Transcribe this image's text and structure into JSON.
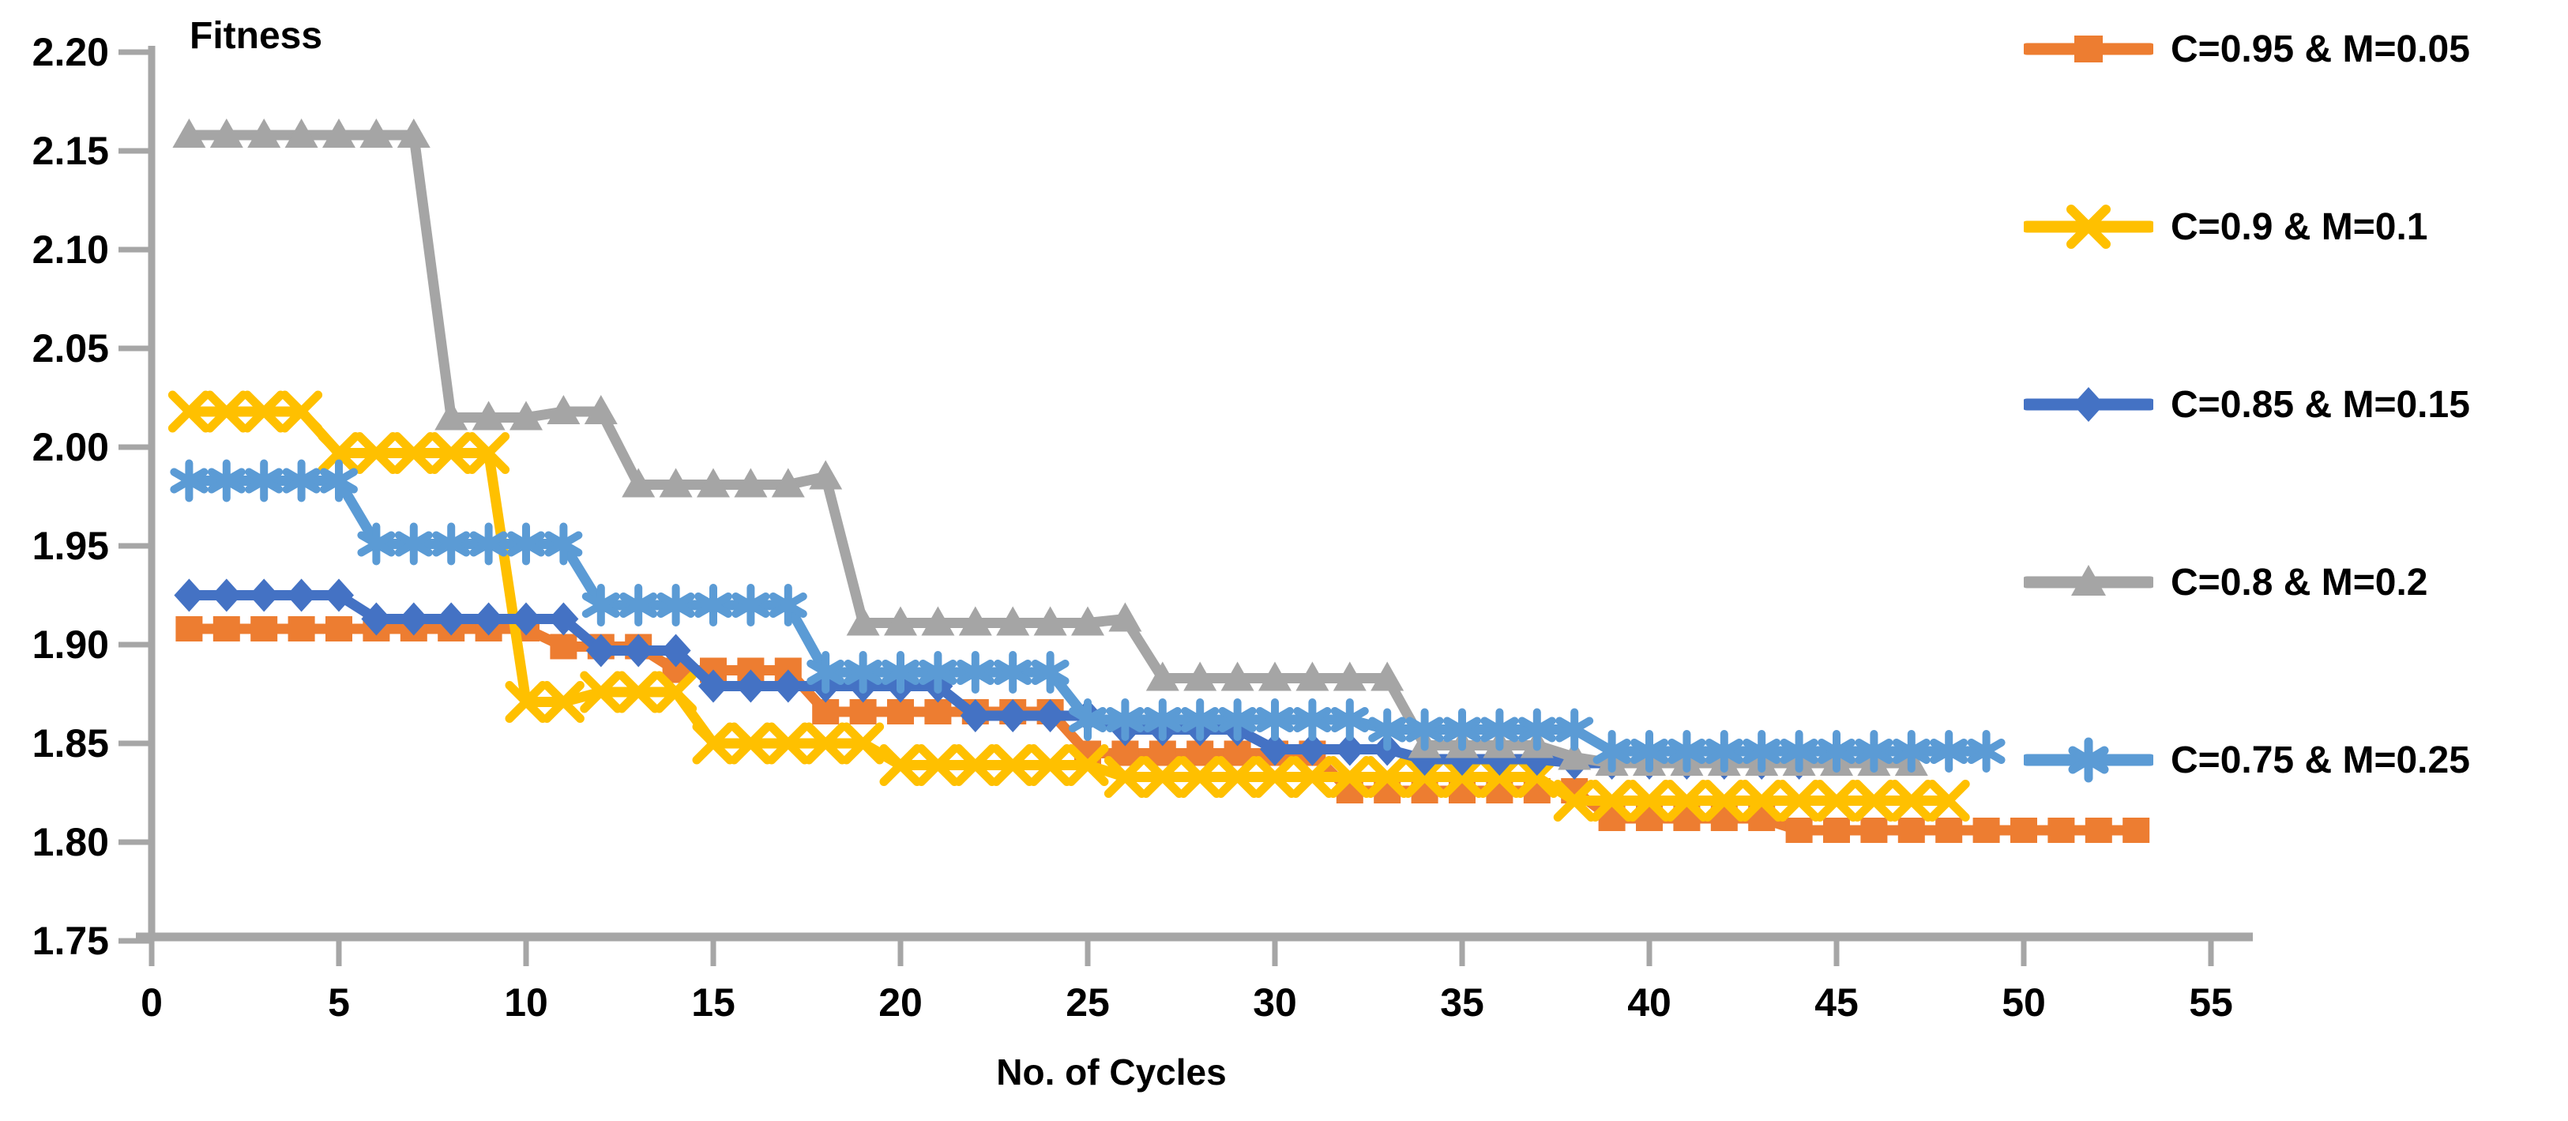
{
  "chart_data": {
    "type": "line",
    "title": "Fitness",
    "xlabel": "No. of Cycles",
    "ylabel": "",
    "grid": false,
    "legend_position": "right",
    "axis_color": "#A6A6A6",
    "text_color": "#000000",
    "xlim": [
      0,
      56
    ],
    "ylim": [
      1.75,
      2.2
    ],
    "x_ticks": [
      0,
      5,
      10,
      15,
      20,
      25,
      30,
      35,
      40,
      45,
      50,
      55
    ],
    "y_ticks": [
      1.75,
      1.8,
      1.85,
      1.9,
      1.95,
      2.0,
      2.05,
      2.1,
      2.15,
      2.2
    ],
    "y_tick_labels": [
      "1.75",
      "1.80",
      "1.85",
      "1.90",
      "1.95",
      "2.00",
      "2.05",
      "2.10",
      "2.15",
      "2.20"
    ],
    "x_start": 1,
    "series": [
      {
        "name": "C=0.95 & M=0.05",
        "color": "#ED7D31",
        "marker": "square",
        "values": [
          1.908,
          1.908,
          1.908,
          1.908,
          1.908,
          1.908,
          1.908,
          1.908,
          1.908,
          1.908,
          1.899,
          1.899,
          1.899,
          1.887,
          1.887,
          1.887,
          1.887,
          1.866,
          1.866,
          1.866,
          1.866,
          1.866,
          1.866,
          1.866,
          1.845,
          1.845,
          1.845,
          1.845,
          1.845,
          1.845,
          1.845,
          1.826,
          1.826,
          1.826,
          1.826,
          1.826,
          1.826,
          1.826,
          1.812,
          1.812,
          1.812,
          1.812,
          1.812,
          1.806,
          1.806,
          1.806,
          1.806,
          1.806,
          1.806,
          1.806,
          1.806,
          1.806,
          1.806
        ]
      },
      {
        "name": "C=0.9 & M=0.1",
        "color": "#FFC000",
        "marker": "x",
        "values": [
          2.018,
          2.018,
          2.018,
          2.018,
          1.997,
          1.997,
          1.997,
          1.997,
          1.997,
          1.871,
          1.871,
          1.876,
          1.876,
          1.876,
          1.85,
          1.85,
          1.85,
          1.85,
          1.85,
          1.839,
          1.839,
          1.839,
          1.839,
          1.839,
          1.839,
          1.833,
          1.833,
          1.833,
          1.833,
          1.833,
          1.833,
          1.833,
          1.833,
          1.833,
          1.833,
          1.833,
          1.833,
          1.821,
          1.821,
          1.821,
          1.821,
          1.821,
          1.821,
          1.821,
          1.821,
          1.821,
          1.821,
          1.821
        ]
      },
      {
        "name": "C=0.85 & M=0.15",
        "color": "#4472C4",
        "marker": "diamond",
        "values": [
          1.925,
          1.925,
          1.925,
          1.925,
          1.925,
          1.913,
          1.913,
          1.913,
          1.913,
          1.913,
          1.913,
          1.897,
          1.897,
          1.897,
          1.879,
          1.879,
          1.879,
          1.879,
          1.879,
          1.879,
          1.879,
          1.864,
          1.864,
          1.864,
          1.864,
          1.857,
          1.857,
          1.857,
          1.857,
          1.847,
          1.847,
          1.847,
          1.847,
          1.842,
          1.842,
          1.842,
          1.842,
          1.84,
          1.84,
          1.84,
          1.84,
          1.84,
          1.84,
          1.84
        ]
      },
      {
        "name": "C=0.8 & M=0.2",
        "color": "#A5A5A5",
        "marker": "triangle",
        "values": [
          2.158,
          2.158,
          2.158,
          2.158,
          2.158,
          2.158,
          2.158,
          2.015,
          2.015,
          2.015,
          2.018,
          2.018,
          1.981,
          1.981,
          1.981,
          1.981,
          1.981,
          1.985,
          1.911,
          1.911,
          1.911,
          1.911,
          1.911,
          1.911,
          1.911,
          1.913,
          1.883,
          1.883,
          1.883,
          1.883,
          1.883,
          1.883,
          1.883,
          1.849,
          1.849,
          1.849,
          1.849,
          1.843,
          1.84,
          1.84,
          1.84,
          1.84,
          1.84,
          1.84,
          1.84,
          1.84,
          1.84
        ]
      },
      {
        "name": "C=0.75 & M=0.25",
        "color": "#5B9BD5",
        "marker": "asterisk",
        "values": [
          1.983,
          1.983,
          1.983,
          1.983,
          1.983,
          1.951,
          1.951,
          1.951,
          1.951,
          1.951,
          1.951,
          1.92,
          1.92,
          1.92,
          1.92,
          1.92,
          1.92,
          1.886,
          1.886,
          1.886,
          1.886,
          1.886,
          1.886,
          1.886,
          1.862,
          1.862,
          1.862,
          1.862,
          1.862,
          1.862,
          1.862,
          1.862,
          1.857,
          1.857,
          1.857,
          1.857,
          1.857,
          1.857,
          1.846,
          1.846,
          1.846,
          1.846,
          1.846,
          1.846,
          1.846,
          1.846,
          1.846,
          1.846,
          1.846
        ]
      }
    ]
  }
}
